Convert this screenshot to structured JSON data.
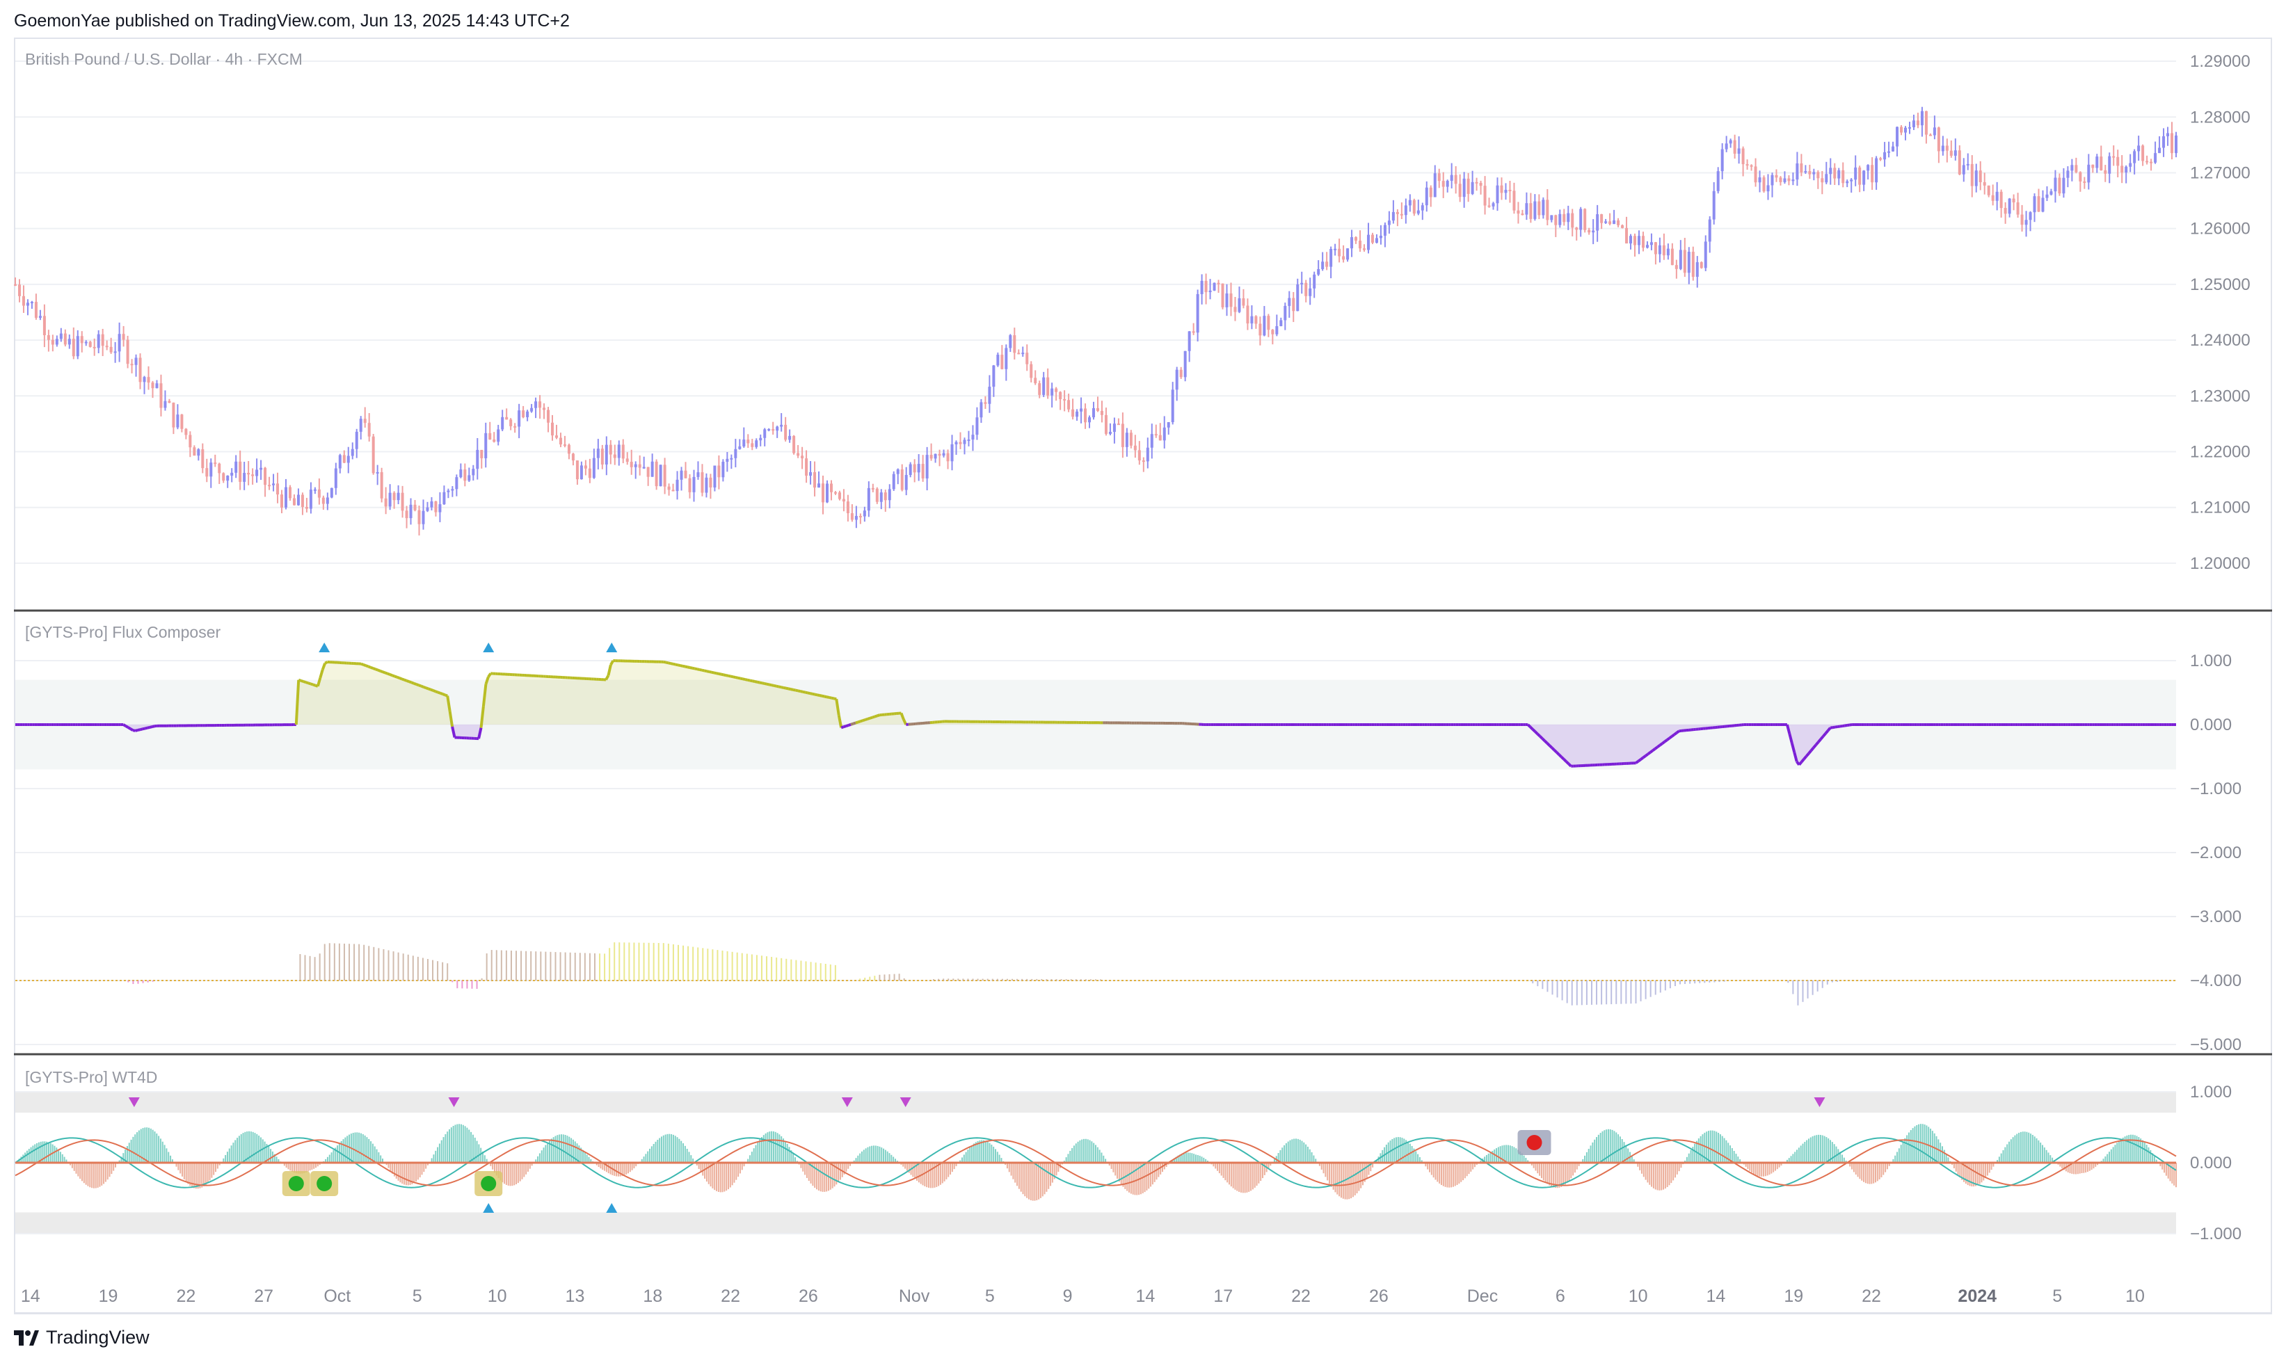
{
  "header": {
    "published_text": "GoemonYae published on TradingView.com, Jun 13, 2025 14:43 UTC+2"
  },
  "footer": {
    "brand": "TradingView",
    "logo_icon": "tradingview-logo-icon"
  },
  "colors": {
    "up_candle": "#8c8cf0",
    "down_candle": "#f0a0a0",
    "flux_positive": "#b9bd25",
    "flux_negative": "#7b1fd6",
    "grid": "#eef0f4",
    "pane_divider": "#4a4a4a",
    "wt_bull": "#2bb3a0",
    "wt_bear": "#e07a58"
  },
  "chart_data": [
    {
      "type": "candlestick",
      "title": "British Pound / U.S. Dollar · 4h · FXCM",
      "yaxis_ticks": [
        "1.29000",
        "1.28000",
        "1.27000",
        "1.26000",
        "1.25000",
        "1.24000",
        "1.23000",
        "1.22000",
        "1.21000",
        "1.20000"
      ],
      "ylim": [
        1.196,
        1.292
      ],
      "x_ticks": [
        "14",
        "19",
        "22",
        "27",
        "Oct",
        "5",
        "10",
        "13",
        "18",
        "22",
        "26",
        "Nov",
        "5",
        "9",
        "14",
        "17",
        "22",
        "26",
        "Dec",
        "6",
        "10",
        "14",
        "19",
        "22",
        "2024",
        "5",
        "10"
      ],
      "close_path": {
        "x": [
          0,
          0.01,
          0.02,
          0.05,
          0.07,
          0.09,
          0.11,
          0.13,
          0.145,
          0.16,
          0.17,
          0.19,
          0.21,
          0.24,
          0.26,
          0.28,
          0.3,
          0.32,
          0.35,
          0.37,
          0.385,
          0.4,
          0.42,
          0.44,
          0.46,
          0.48,
          0.5,
          0.52,
          0.53,
          0.55,
          0.58,
          0.61,
          0.64,
          0.66,
          0.69,
          0.72,
          0.75,
          0.78,
          0.79,
          0.81,
          0.83,
          0.86,
          0.88,
          0.9,
          0.93,
          0.95,
          0.97,
          1.0
        ],
        "y": [
          1.25,
          1.245,
          1.239,
          1.239,
          1.228,
          1.217,
          1.216,
          1.21,
          1.213,
          1.226,
          1.212,
          1.208,
          1.218,
          1.23,
          1.216,
          1.221,
          1.215,
          1.214,
          1.226,
          1.214,
          1.209,
          1.213,
          1.217,
          1.222,
          1.24,
          1.229,
          1.227,
          1.22,
          1.222,
          1.25,
          1.242,
          1.255,
          1.262,
          1.269,
          1.265,
          1.262,
          1.258,
          1.253,
          1.276,
          1.268,
          1.27,
          1.27,
          1.281,
          1.271,
          1.262,
          1.27,
          1.271,
          1.2755
        ]
      }
    },
    {
      "type": "area",
      "title": "[GYTS-Pro] Flux Composer",
      "yaxis_ticks": [
        "1.000",
        "0.000",
        "−1.000",
        "−2.000",
        "−3.000",
        "−4.000",
        "−5.000"
      ],
      "ylim": [
        -5.0,
        1.0
      ],
      "line": {
        "x": [
          0,
          0.05,
          0.055,
          0.065,
          0.13,
          0.131,
          0.14,
          0.143,
          0.144,
          0.16,
          0.2,
          0.203,
          0.215,
          0.218,
          0.22,
          0.274,
          0.276,
          0.3,
          0.38,
          0.382,
          0.4,
          0.41,
          0.412,
          0.43,
          0.54,
          0.55,
          0.56,
          0.64,
          0.7,
          0.72,
          0.75,
          0.77,
          0.8,
          0.82,
          0.825,
          0.84,
          0.85,
          1.0
        ],
        "y": [
          0,
          0,
          -0.1,
          -0.02,
          0,
          0.7,
          0.6,
          0.95,
          0.98,
          0.95,
          0.45,
          -0.2,
          -0.22,
          0.7,
          0.8,
          0.7,
          1.0,
          0.98,
          0.4,
          -0.05,
          0.15,
          0.18,
          0,
          0.05,
          0.02,
          0,
          0,
          0,
          0,
          -0.65,
          -0.6,
          -0.1,
          0,
          0,
          -0.65,
          -0.05,
          0,
          0
        ]
      },
      "histogram_baseline": -4.0,
      "triangle_signals_x": [
        0.143,
        0.219,
        0.276
      ]
    },
    {
      "type": "area",
      "title": "[GYTS-Pro] WT4D",
      "yaxis_ticks": [
        "1.000",
        "0.000",
        "−1.000"
      ],
      "ylim": [
        -1.0,
        1.0
      ],
      "down_triangle_x": [
        0.055,
        0.203,
        0.385,
        0.412,
        0.835
      ],
      "up_triangle_x": [
        0.219,
        0.276
      ],
      "green_dots_x": [
        0.13,
        0.143,
        0.219
      ],
      "red_dots_x": [
        0.703
      ]
    }
  ]
}
